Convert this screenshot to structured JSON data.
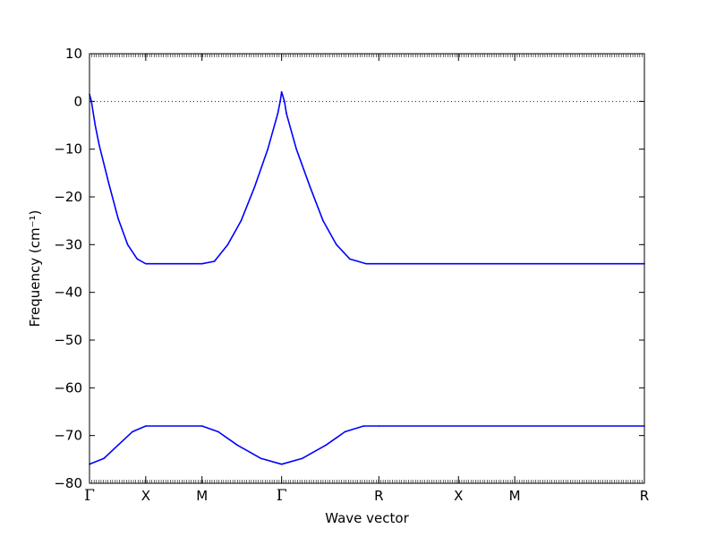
{
  "chart_data": {
    "type": "line",
    "title": "",
    "xlabel": "Wave vector",
    "ylabel": "Frequency (cm⁻¹)",
    "ylim": [
      -80,
      10
    ],
    "yticks": [
      10,
      0,
      -10,
      -20,
      -30,
      -40,
      -50,
      -60,
      -70,
      -80
    ],
    "ytick_labels": [
      "10",
      "0",
      "−10",
      "−20",
      "−30",
      "−40",
      "−50",
      "−60",
      "−70",
      "−80"
    ],
    "grid": false,
    "legend": "none",
    "xlim": [
      0,
      1.164
    ],
    "high_symmetry_points": [
      {
        "label": "Γ",
        "x": 0.0
      },
      {
        "label": "X",
        "x": 0.118
      },
      {
        "label": "M",
        "x": 0.236
      },
      {
        "label": "Γ",
        "x": 0.403
      },
      {
        "label": "R",
        "x": 0.607
      },
      {
        "label": "X",
        "x": 0.774
      },
      {
        "label": "M",
        "x": 0.892
      },
      {
        "label": "R",
        "x": 1.164
      }
    ],
    "zero_line": {
      "y": 0,
      "style": "dotted",
      "color": "#0000ff"
    },
    "series": [
      {
        "values_xy": [
          [
            0.0,
            1.5
          ],
          [
            0.004,
            0.0
          ],
          [
            0.012,
            -5.0
          ],
          [
            0.02,
            -9.0
          ],
          [
            0.04,
            -17.0
          ],
          [
            0.06,
            -24.5
          ],
          [
            0.08,
            -30.0
          ],
          [
            0.1,
            -33.0
          ],
          [
            0.118,
            -34.0
          ],
          [
            0.236,
            -34.0
          ],
          [
            0.262,
            -33.5
          ],
          [
            0.29,
            -30.0
          ],
          [
            0.318,
            -25.0
          ],
          [
            0.346,
            -18.0
          ],
          [
            0.374,
            -10.0
          ],
          [
            0.395,
            -2.5
          ],
          [
            0.4,
            0.0
          ],
          [
            0.403,
            2.0
          ],
          [
            0.409,
            0.0
          ],
          [
            0.413,
            -2.5
          ],
          [
            0.434,
            -10.0
          ],
          [
            0.463,
            -18.0
          ],
          [
            0.49,
            -25.0
          ],
          [
            0.518,
            -30.0
          ],
          [
            0.546,
            -33.0
          ],
          [
            0.58,
            -34.0
          ],
          [
            0.607,
            -34.0
          ],
          [
            1.164,
            -34.0
          ]
        ],
        "color": "#0000ff"
      },
      {
        "values_xy": [
          [
            0.0,
            -76.0
          ],
          [
            0.03,
            -74.8
          ],
          [
            0.06,
            -72.0
          ],
          [
            0.09,
            -69.2
          ],
          [
            0.118,
            -68.0
          ],
          [
            0.236,
            -68.0
          ],
          [
            0.27,
            -69.2
          ],
          [
            0.31,
            -72.0
          ],
          [
            0.36,
            -74.8
          ],
          [
            0.403,
            -76.0
          ],
          [
            0.446,
            -74.8
          ],
          [
            0.496,
            -72.0
          ],
          [
            0.536,
            -69.2
          ],
          [
            0.575,
            -68.0
          ],
          [
            0.607,
            -68.0
          ],
          [
            1.164,
            -68.0
          ]
        ],
        "color": "#0000ff"
      }
    ]
  }
}
